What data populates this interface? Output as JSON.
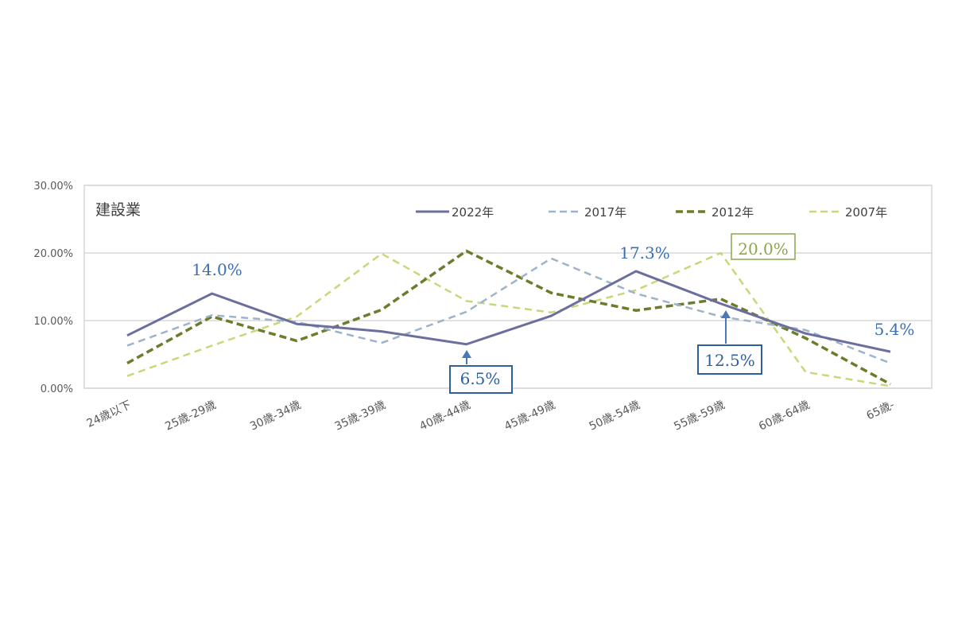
{
  "chart_data": {
    "type": "line",
    "title": "建設業",
    "xlabel": "",
    "ylabel": "",
    "ylim": [
      0,
      30
    ],
    "yticks": [
      "0.00%",
      "10.00%",
      "20.00%",
      "30.00%"
    ],
    "grid": true,
    "legend_position": "top-right inside",
    "categories": [
      "24歳以下",
      "25歳-29歳",
      "30歳-34歳",
      "35歳-39歳",
      "40歳-44歳",
      "45歳-49歳",
      "50歳-54歳",
      "55歳-59歳",
      "60歳-64歳",
      "65歳-"
    ],
    "series": [
      {
        "name": "2022年",
        "color": "#6b6f9e",
        "dash": "solid",
        "width": 3,
        "values": [
          7.8,
          14.0,
          9.5,
          8.4,
          6.5,
          10.7,
          17.3,
          12.5,
          8.1,
          5.4
        ]
      },
      {
        "name": "2017年",
        "color": "#9db3c9",
        "dash": "light",
        "width": 2.5,
        "values": [
          6.3,
          10.8,
          9.8,
          6.7,
          11.3,
          19.2,
          14.0,
          10.6,
          8.6,
          3.7
        ]
      },
      {
        "name": "2012年",
        "color": "#6a7d2c",
        "dash": "heavy",
        "width": 3.5,
        "values": [
          3.7,
          10.6,
          7.0,
          11.6,
          20.3,
          14.1,
          11.5,
          13.2,
          7.4,
          0.6
        ]
      },
      {
        "name": "2007年",
        "color": "#c6d97a",
        "dash": "light",
        "width": 2.5,
        "values": [
          1.8,
          6.3,
          10.6,
          19.9,
          12.9,
          11.2,
          14.5,
          20.0,
          2.4,
          0.3
        ]
      }
    ],
    "annotations": [
      {
        "text": "14.0%",
        "category_index": 1,
        "style": "plain",
        "color": "#3a6fb5"
      },
      {
        "text": "6.5%",
        "category_index": 4,
        "style": "boxed-arrow",
        "color": "#2f5f9e"
      },
      {
        "text": "17.3%",
        "category_index": 6,
        "style": "plain",
        "color": "#3a6fb5"
      },
      {
        "text": "12.5%",
        "category_index": 7,
        "style": "boxed-arrow",
        "color": "#2f5f9e"
      },
      {
        "text": "20.0%",
        "category_index": 7,
        "style": "boxed",
        "color": "#8aa84a"
      },
      {
        "text": "5.4%",
        "category_index": 9,
        "style": "plain",
        "color": "#3a6fb5"
      }
    ]
  }
}
